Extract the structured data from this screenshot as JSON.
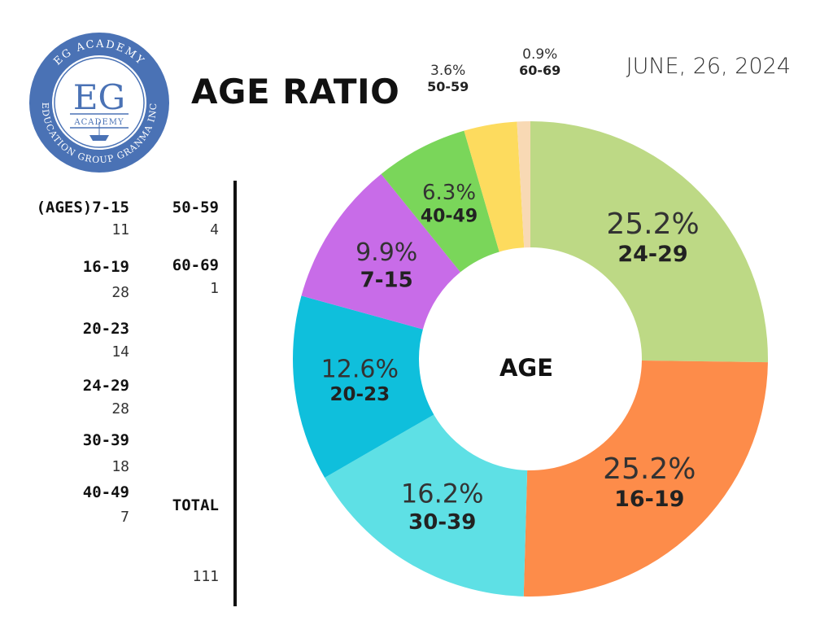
{
  "header": {
    "title": "AGE RATIO",
    "date": "JUNE, 26, 2024"
  },
  "logo": {
    "ring_top": "EG ACADEMY",
    "ring_bottom": "EDUCATION GROUP GRANMA INC",
    "monogram": "EG",
    "subtitle": "ACADEMY",
    "color": "#4a72b5"
  },
  "table": {
    "left": [
      {
        "label": "(AGES)7-15",
        "value": "11"
      },
      {
        "label": "16-19",
        "value": "28"
      },
      {
        "label": "20-23",
        "value": "14"
      },
      {
        "label": "24-29",
        "value": "28"
      },
      {
        "label": "30-39",
        "value": "18"
      },
      {
        "label": "40-49",
        "value": "7"
      }
    ],
    "right": [
      {
        "label": "50-59",
        "value": "4"
      },
      {
        "label": "60-69",
        "value": "1"
      }
    ],
    "total_label": "TOTAL",
    "total_value": "111"
  },
  "chart_data": {
    "type": "pie",
    "center_label": "AGE",
    "slices": [
      {
        "label": "24-29",
        "percent": "25.2%",
        "value": 25.2,
        "color": "#bdd985"
      },
      {
        "label": "16-19",
        "percent": "25.2%",
        "value": 25.2,
        "color": "#fd8c4a"
      },
      {
        "label": "30-39",
        "percent": "16.2%",
        "value": 16.2,
        "color": "#5ee0e5"
      },
      {
        "label": "20-23",
        "percent": "12.6%",
        "value": 12.6,
        "color": "#0fbfdc"
      },
      {
        "label": "7-15",
        "percent": "9.9%",
        "value": 9.9,
        "color": "#c86ce8"
      },
      {
        "label": "40-49",
        "percent": "6.3%",
        "value": 6.3,
        "color": "#7ad65a"
      },
      {
        "label": "50-59",
        "percent": "3.6%",
        "value": 3.6,
        "color": "#fddb5e"
      },
      {
        "label": "60-69",
        "percent": "0.9%",
        "value": 0.9,
        "color": "#f8d9b4"
      }
    ]
  }
}
